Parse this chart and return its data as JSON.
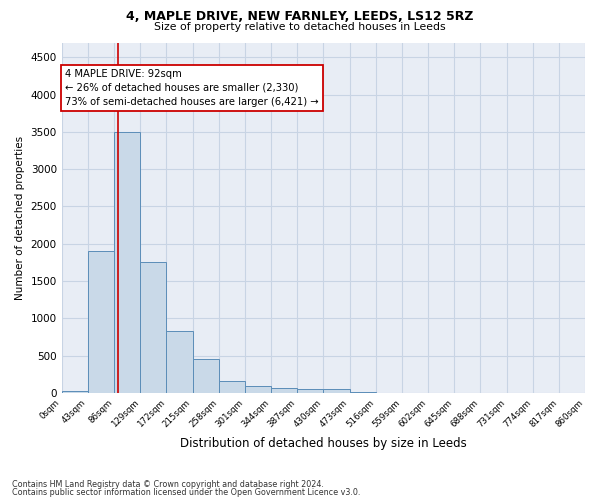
{
  "title1": "4, MAPLE DRIVE, NEW FARNLEY, LEEDS, LS12 5RZ",
  "title2": "Size of property relative to detached houses in Leeds",
  "xlabel": "Distribution of detached houses by size in Leeds",
  "ylabel": "Number of detached properties",
  "bin_edges": [
    0,
    43,
    86,
    129,
    172,
    215,
    258,
    301,
    344,
    387,
    430,
    473,
    516,
    559,
    602,
    645,
    688,
    731,
    774,
    817,
    860
  ],
  "bin_counts": [
    30,
    1900,
    3500,
    1750,
    830,
    450,
    155,
    90,
    65,
    55,
    50,
    5,
    2,
    2,
    1,
    1,
    1,
    0,
    0,
    0
  ],
  "bar_color": "#c9d9e8",
  "bar_edge_color": "#5b8db8",
  "bar_linewidth": 0.7,
  "red_line_x": 92,
  "red_line_color": "#cc0000",
  "annotation_text": "4 MAPLE DRIVE: 92sqm\n← 26% of detached houses are smaller (2,330)\n73% of semi-detached houses are larger (6,421) →",
  "annotation_box_color": "#ffffff",
  "annotation_box_edge": "#cc0000",
  "ylim": [
    0,
    4700
  ],
  "yticks": [
    0,
    500,
    1000,
    1500,
    2000,
    2500,
    3000,
    3500,
    4000,
    4500
  ],
  "grid_color": "#c8d4e4",
  "bg_color": "#e8edf5",
  "footnote1": "Contains HM Land Registry data © Crown copyright and database right 2024.",
  "footnote2": "Contains public sector information licensed under the Open Government Licence v3.0."
}
